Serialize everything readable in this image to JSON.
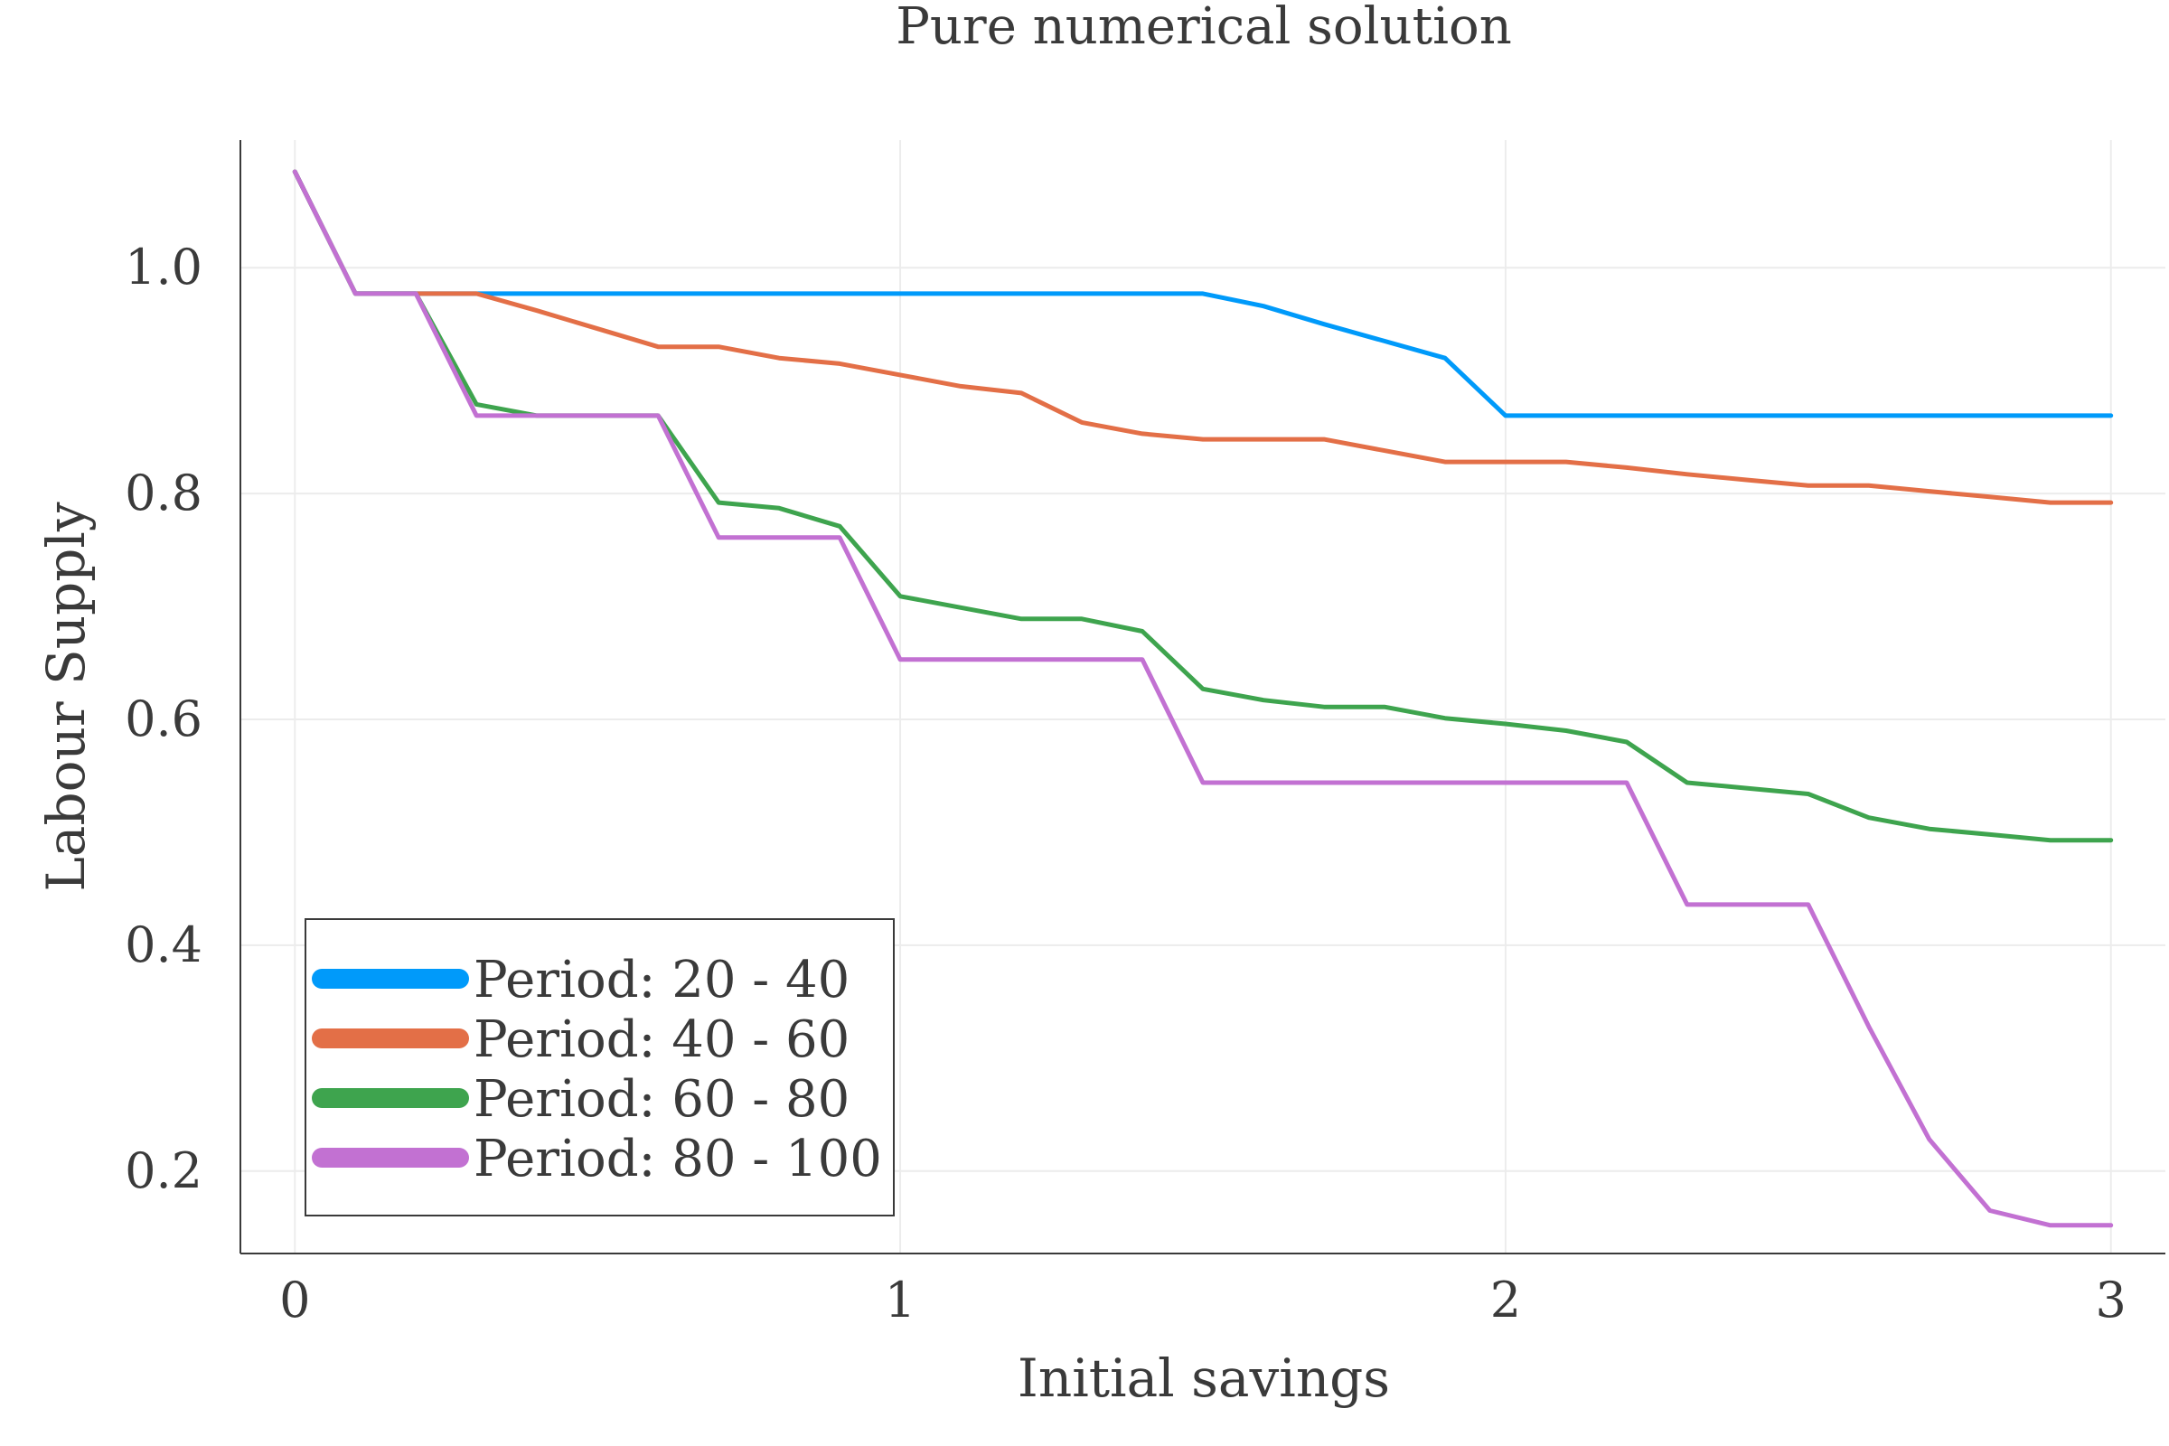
{
  "chart_data": {
    "type": "line",
    "title": "Pure numerical solution",
    "xlabel": "Initial savings",
    "ylabel": "Labour Supply",
    "xlim": [
      -0.09,
      3.09
    ],
    "ylim": [
      0.127,
      1.113
    ],
    "xticks": [
      0,
      1,
      2,
      3
    ],
    "xtick_labels": [
      "0",
      "1",
      "2",
      "3"
    ],
    "yticks": [
      0.2,
      0.4,
      0.6,
      0.8,
      1.0
    ],
    "ytick_labels": [
      "0.2",
      "0.4",
      "0.6",
      "0.8",
      "1.0"
    ],
    "grid": true,
    "legend_position": "bottom-left",
    "x": [
      0.0,
      0.1,
      0.2,
      0.3,
      0.4,
      0.5,
      0.6,
      0.7,
      0.8,
      0.9,
      1.0,
      1.1,
      1.2,
      1.3,
      1.4,
      1.5,
      1.6,
      1.7,
      1.8,
      1.9,
      2.0,
      2.1,
      2.2,
      2.3,
      2.4,
      2.5,
      2.6,
      2.7,
      2.8,
      2.9,
      3.0
    ],
    "series": [
      {
        "name": "Period: 20 - 40",
        "color": "#009AFA",
        "values": [
          1.085,
          0.977,
          0.977,
          0.977,
          0.977,
          0.977,
          0.977,
          0.977,
          0.977,
          0.977,
          0.977,
          0.977,
          0.977,
          0.977,
          0.977,
          0.977,
          0.966,
          0.95,
          0.935,
          0.92,
          0.869,
          0.869,
          0.869,
          0.869,
          0.869,
          0.869,
          0.869,
          0.869,
          0.869,
          0.869,
          0.869
        ]
      },
      {
        "name": "Period: 40 - 60",
        "color": "#E36F47",
        "values": [
          1.085,
          0.977,
          0.977,
          0.977,
          0.962,
          0.946,
          0.93,
          0.93,
          0.92,
          0.915,
          0.905,
          0.895,
          0.889,
          0.863,
          0.853,
          0.848,
          0.848,
          0.848,
          0.838,
          0.828,
          0.828,
          0.828,
          0.823,
          0.817,
          0.812,
          0.807,
          0.807,
          0.802,
          0.797,
          0.792,
          0.792
        ]
      },
      {
        "name": "Period: 60 - 80",
        "color": "#3EA44E",
        "values": [
          1.085,
          0.977,
          0.977,
          0.879,
          0.869,
          0.869,
          0.869,
          0.792,
          0.787,
          0.771,
          0.709,
          0.699,
          0.689,
          0.689,
          0.678,
          0.627,
          0.617,
          0.611,
          0.611,
          0.601,
          0.596,
          0.59,
          0.58,
          0.544,
          0.539,
          0.534,
          0.513,
          0.503,
          0.498,
          0.493,
          0.493
        ]
      },
      {
        "name": "Period: 80 - 100",
        "color": "#C271D2",
        "values": [
          1.085,
          0.977,
          0.977,
          0.869,
          0.869,
          0.869,
          0.869,
          0.761,
          0.761,
          0.761,
          0.653,
          0.653,
          0.653,
          0.653,
          0.653,
          0.544,
          0.544,
          0.544,
          0.544,
          0.544,
          0.544,
          0.544,
          0.544,
          0.436,
          0.436,
          0.436,
          0.328,
          0.228,
          0.165,
          0.152,
          0.152
        ]
      }
    ]
  }
}
